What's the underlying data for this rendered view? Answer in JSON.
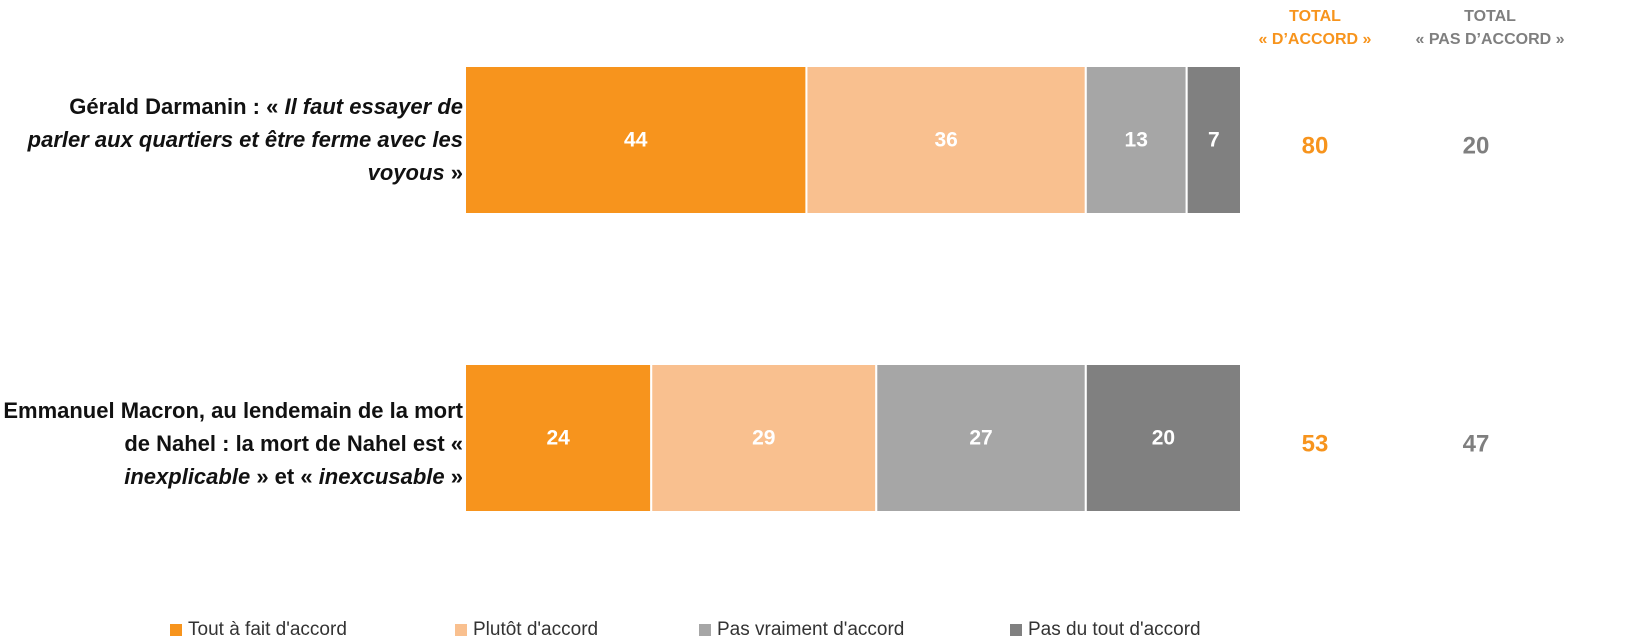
{
  "header": {
    "agree_line1": "TOTAL",
    "agree_line2": "« D’ACCORD »",
    "disagree_line1": "TOTAL",
    "disagree_line2": "« PAS D’ACCORD »"
  },
  "rows": [
    {
      "parts": [
        {
          "text": "Gérald Darmanin : « ",
          "italic": false
        },
        {
          "text": "Il faut essayer de parler aux quartiers et être ferme avec les voyous",
          "italic": true
        },
        {
          "text": " »",
          "italic": false
        }
      ]
    },
    {
      "parts": [
        {
          "text": "Emmanuel Macron, au lendemain de la mort de Nahel : la mort de Nahel est « ",
          "italic": false
        },
        {
          "text": "inexplicable",
          "italic": true
        },
        {
          "text": " » et « ",
          "italic": false
        },
        {
          "text": "inexcusable",
          "italic": true
        },
        {
          "text": " »",
          "italic": false
        }
      ]
    }
  ],
  "colors": {
    "tout_a_fait": "#F7941D",
    "plutot": "#F9C08F",
    "pas_vraiment": "#A6A6A6",
    "pas_du_tout": "#808080",
    "total_agree": "#F7941D",
    "total_disagree": "#7F7F7F",
    "segment_label": "#FFFFFF"
  },
  "chart_data": {
    "type": "bar",
    "orientation": "horizontal",
    "stacked": true,
    "xlim": [
      0,
      100
    ],
    "grid": false,
    "legend_position": "bottom",
    "categories": [
      "Gérald Darmanin : « Il faut essayer de parler aux quartiers et être ferme avec les voyous »",
      "Emmanuel Macron, au lendemain de la mort de Nahel : la mort de Nahel est « inexplicable » et « inexcusable »"
    ],
    "series": [
      {
        "name": "Tout à fait d'accord",
        "values": [
          44,
          24
        ],
        "color": "#F7941D"
      },
      {
        "name": "Plutôt d'accord",
        "values": [
          36,
          29
        ],
        "color": "#F9C08F"
      },
      {
        "name": "Pas vraiment d'accord",
        "values": [
          13,
          27
        ],
        "color": "#A6A6A6"
      },
      {
        "name": "Pas du tout d'accord",
        "values": [
          7,
          20
        ],
        "color": "#808080"
      }
    ],
    "totals": {
      "agree": [
        80,
        53
      ],
      "disagree": [
        20,
        47
      ]
    }
  }
}
